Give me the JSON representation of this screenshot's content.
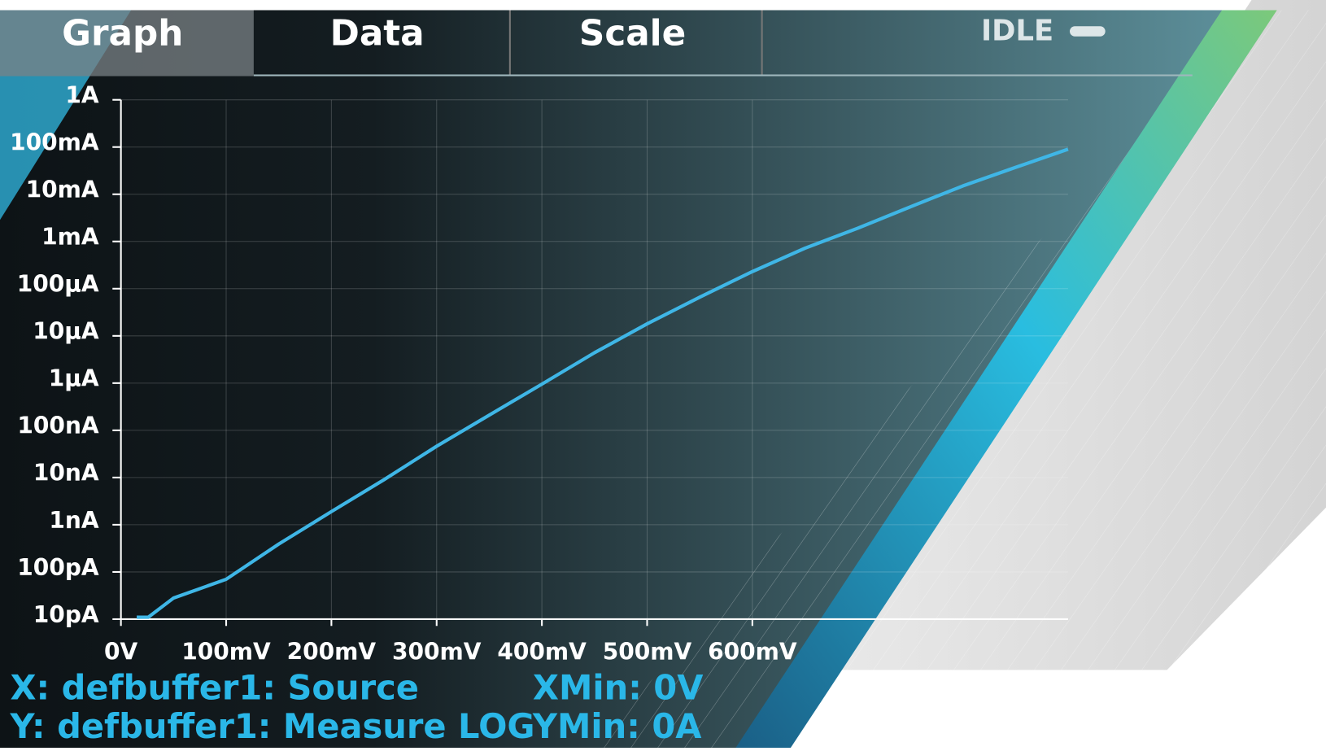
{
  "tabs": [
    "Graph",
    "Data",
    "Scale"
  ],
  "status": "IDLE",
  "chart_data": {
    "type": "line",
    "yscale": "log",
    "grid": true,
    "color": "#3fb6e6",
    "x": [
      0.015,
      0.026,
      0.05,
      0.1,
      0.15,
      0.2,
      0.25,
      0.3,
      0.35,
      0.4,
      0.45,
      0.5,
      0.55,
      0.6,
      0.65,
      0.7,
      0.75,
      0.8,
      0.85,
      0.9
    ],
    "values": [
      1.1e-11,
      1.1e-11,
      2.8e-11,
      7e-11,
      3.9e-10,
      1.9e-09,
      9e-09,
      4.6e-08,
      2.1e-07,
      9.5e-07,
      4.4e-06,
      1.8e-05,
      6.6e-05,
      0.00023,
      0.00072,
      0.0019,
      0.0054,
      0.015,
      0.037,
      0.09
    ],
    "xlim": [
      0,
      0.9
    ],
    "ylim": [
      1e-11,
      1
    ],
    "xticks": [
      {
        "value": 0,
        "label": "0V"
      },
      {
        "value": 0.1,
        "label": "100mV"
      },
      {
        "value": 0.2,
        "label": "200mV"
      },
      {
        "value": 0.3,
        "label": "300mV"
      },
      {
        "value": 0.4,
        "label": "400mV"
      },
      {
        "value": 0.5,
        "label": "500mV"
      },
      {
        "value": 0.6,
        "label": "600mV"
      }
    ],
    "yticks": [
      {
        "value": 1,
        "label": "1A"
      },
      {
        "value": 0.1,
        "label": "100mA"
      },
      {
        "value": 0.01,
        "label": "10mA"
      },
      {
        "value": 0.001,
        "label": "1mA"
      },
      {
        "value": 0.0001,
        "label": "100µA"
      },
      {
        "value": 1e-05,
        "label": "10µA"
      },
      {
        "value": 1e-06,
        "label": "1µA"
      },
      {
        "value": 1e-07,
        "label": "100nA"
      },
      {
        "value": 1e-08,
        "label": "10nA"
      },
      {
        "value": 1e-09,
        "label": "1nA"
      },
      {
        "value": 1e-10,
        "label": "100pA"
      },
      {
        "value": 1e-11,
        "label": "10pA"
      }
    ]
  },
  "footer": {
    "x_source": "X: defbuffer1: Source",
    "x_min": "XMin: 0V",
    "y_source": "Y: defbuffer1: Measure LOG",
    "y_min": "YMin: 0A"
  }
}
